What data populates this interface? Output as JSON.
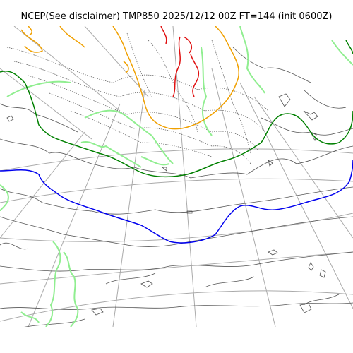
{
  "title": "NCEP(See disclaimer) TMP850 2025/12/12 00Z FT=144 (init 0600Z)",
  "colors": {
    "warm_isotherm": "#e01010",
    "mid_isotherm": "#f0a000",
    "freezing_line": "#008000",
    "cold_line": "#0000ee",
    "moisture_contour": "#90ee90",
    "coastline": "#505050",
    "pressure_contour": "#555555",
    "graticule": "#aaaaaa"
  }
}
